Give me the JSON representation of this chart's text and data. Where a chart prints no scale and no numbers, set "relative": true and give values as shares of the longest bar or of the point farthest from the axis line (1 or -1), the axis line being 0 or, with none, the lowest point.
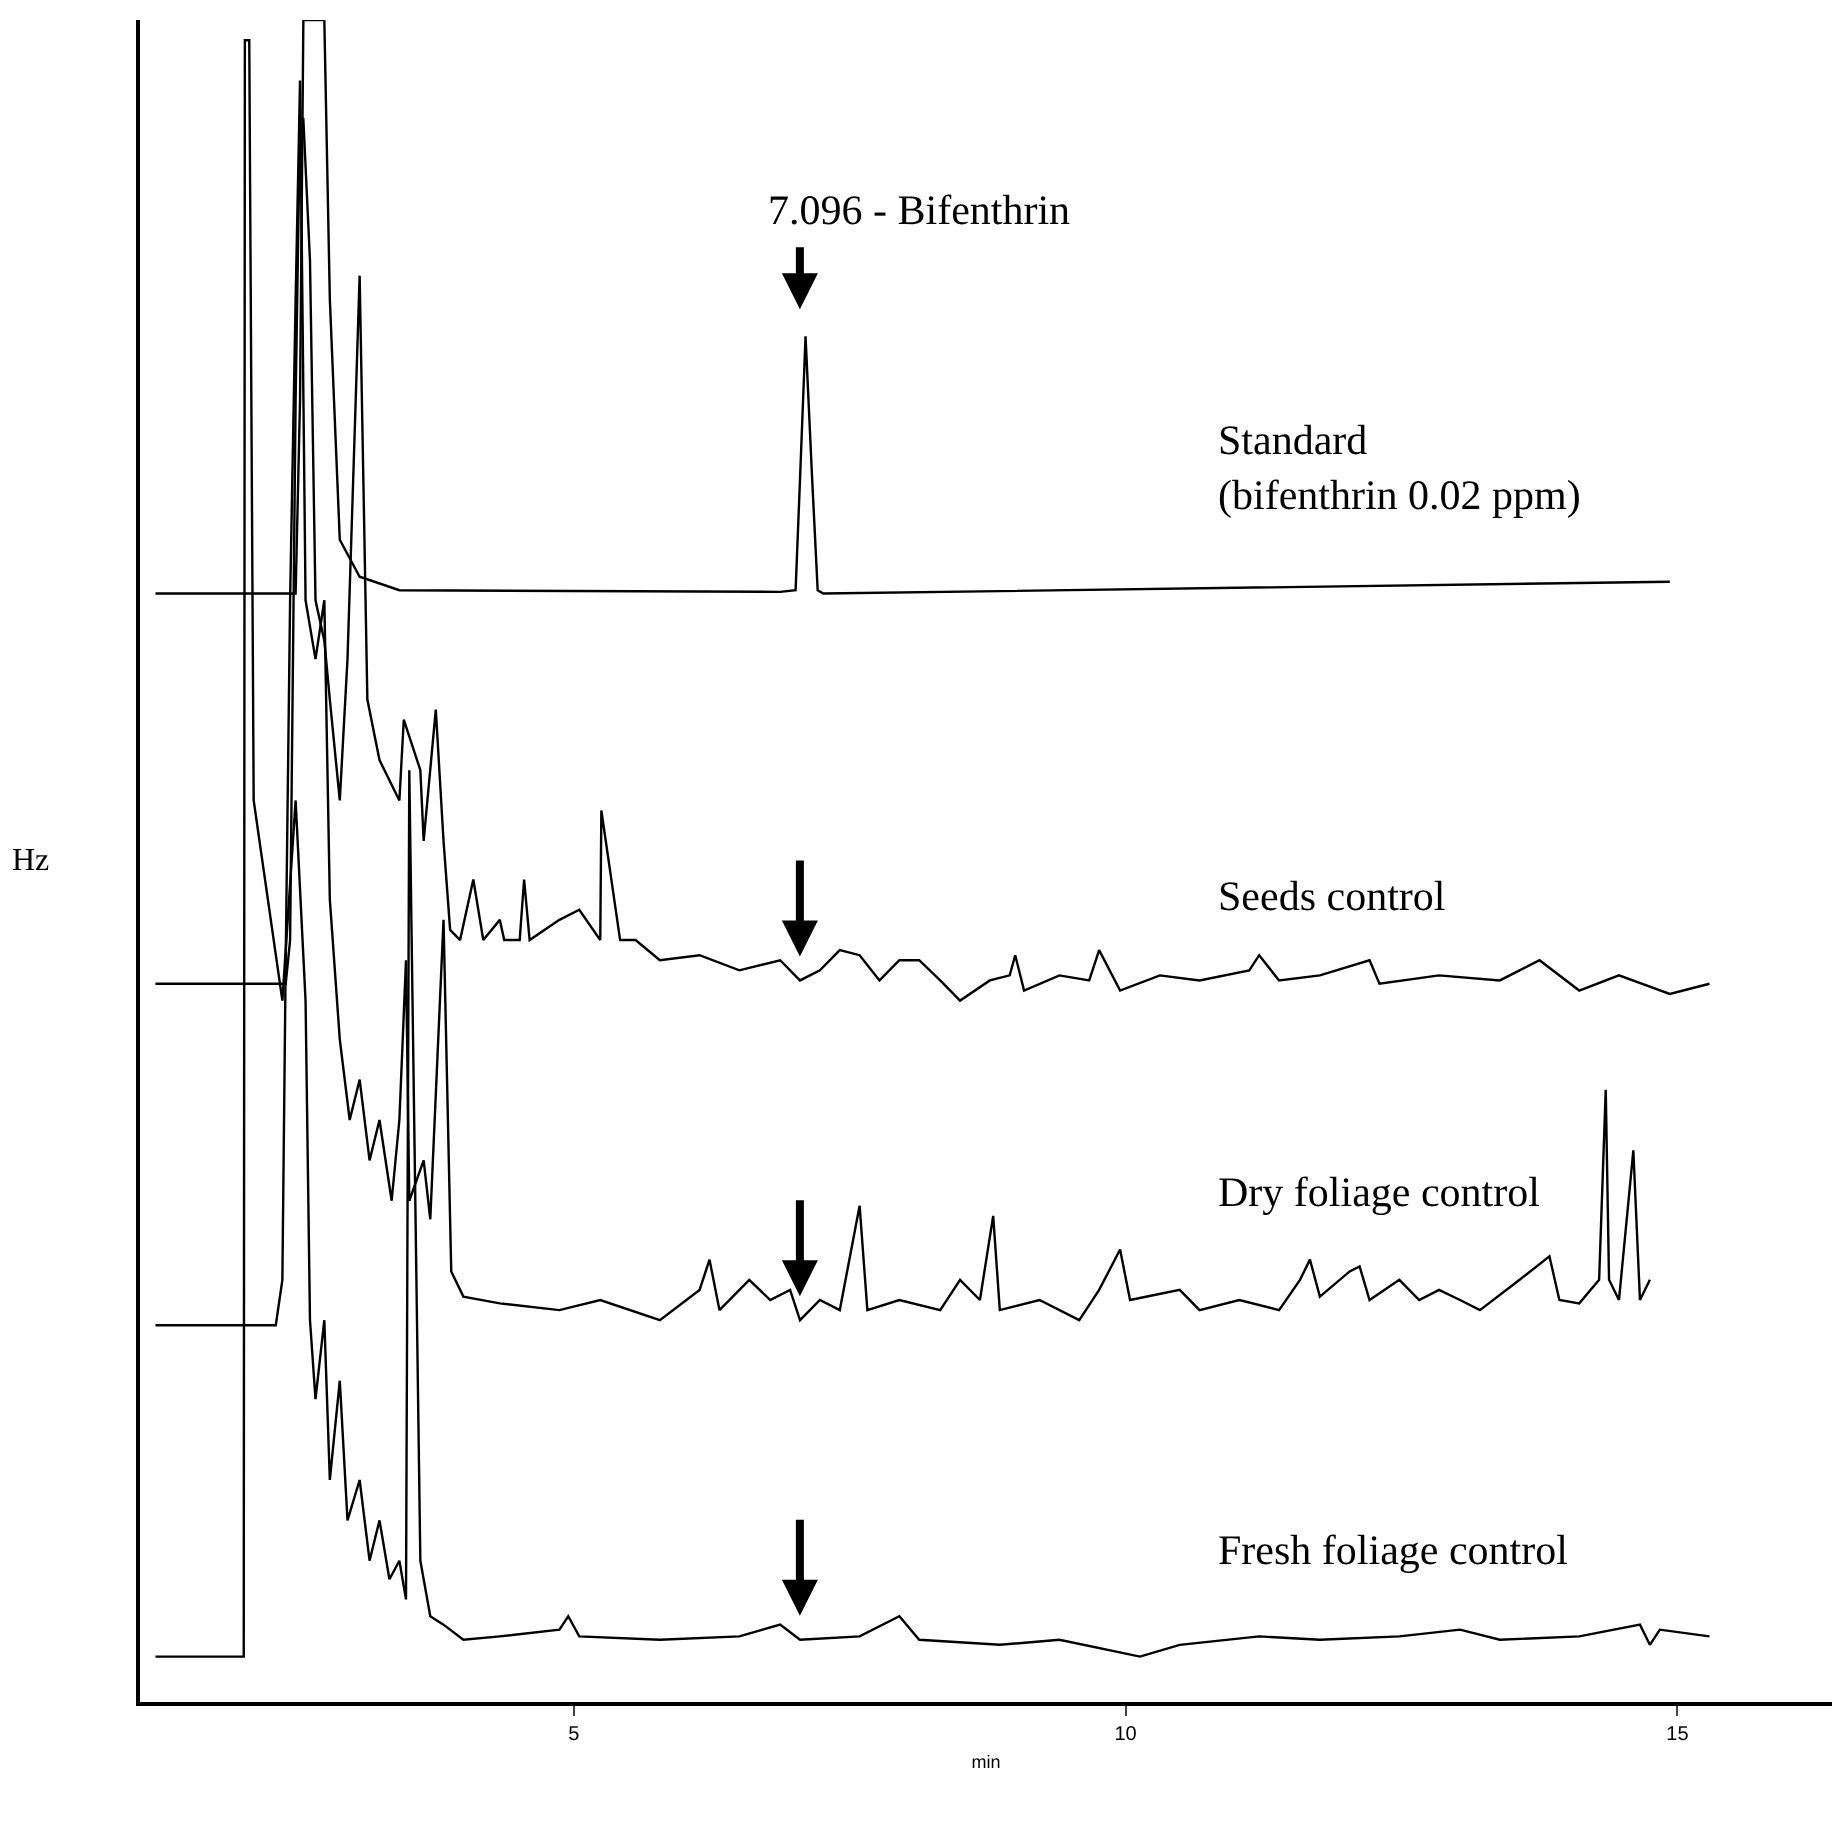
{
  "chart_data": {
    "type": "line",
    "relative": true,
    "xlabel": "min",
    "ylabel": "Hz",
    "xlim": [
      1.07,
      16.4
    ],
    "xticks": [
      5,
      10,
      15
    ],
    "legend": false,
    "grid": false,
    "marker": "none",
    "line_style": "solid",
    "annotations": [
      "7.096 - Bifenthrin"
    ],
    "series": [
      {
        "name": "Standard\n(bifenthrin 0.02 ppm)",
        "color": "#000000",
        "x": [
          1.21,
          2.48,
          2.52,
          2.55,
          2.74,
          2.79,
          2.88,
          3.06,
          3.42,
          6.87,
          7.01,
          7.05,
          7.1,
          7.16,
          7.21,
          7.26,
          14.93
        ],
        "values": [
          0.659,
          0.659,
          0.774,
          1.0,
          1.0,
          0.834,
          0.691,
          0.669,
          0.661,
          0.66,
          0.661,
          0.727,
          0.812,
          0.727,
          0.661,
          0.659,
          0.666
        ]
      },
      {
        "name": "Seeds control",
        "color": "#000000",
        "x": [
          1.21,
          2.39,
          2.43,
          2.48,
          2.52,
          2.55,
          2.61,
          2.66,
          2.74,
          2.79,
          2.88,
          2.95,
          3.06,
          3.13,
          3.24,
          3.42,
          3.46,
          3.61,
          3.64,
          3.75,
          3.82,
          3.88,
          3.97,
          4.09,
          4.18,
          4.33,
          4.37,
          4.51,
          4.55,
          4.6,
          4.87,
          5.05,
          5.24,
          5.25,
          5.42,
          5.56,
          5.78,
          6.14,
          6.5,
          6.87,
          7.05,
          7.23,
          7.41,
          7.59,
          7.77,
          7.95,
          8.13,
          8.32,
          8.5,
          8.77,
          8.95,
          9.0,
          9.08,
          9.4,
          9.67,
          9.76,
          9.95,
          10.31,
          10.67,
          11.12,
          11.21,
          11.39,
          11.76,
          12.21,
          12.3,
          12.84,
          13.39,
          13.75,
          14.11,
          14.47,
          14.93,
          15.29
        ],
        "values": [
          0.427,
          0.427,
          0.453,
          0.774,
          0.941,
          0.941,
          0.857,
          0.655,
          0.631,
          0.596,
          0.536,
          0.62,
          0.848,
          0.596,
          0.56,
          0.536,
          0.584,
          0.554,
          0.512,
          0.59,
          0.512,
          0.459,
          0.453,
          0.489,
          0.453,
          0.465,
          0.453,
          0.453,
          0.489,
          0.453,
          0.465,
          0.471,
          0.453,
          0.53,
          0.453,
          0.453,
          0.441,
          0.444,
          0.435,
          0.441,
          0.429,
          0.435,
          0.447,
          0.444,
          0.429,
          0.441,
          0.441,
          0.429,
          0.417,
          0.429,
          0.432,
          0.444,
          0.423,
          0.432,
          0.429,
          0.447,
          0.423,
          0.432,
          0.429,
          0.435,
          0.444,
          0.429,
          0.432,
          0.441,
          0.427,
          0.432,
          0.429,
          0.441,
          0.423,
          0.432,
          0.421,
          0.427
        ]
      },
      {
        "name": "Dry foliage control",
        "color": "#000000",
        "x": [
          1.21,
          2.3,
          2.36,
          2.39,
          2.43,
          2.48,
          2.52,
          2.57,
          2.66,
          2.74,
          2.79,
          2.88,
          2.97,
          3.06,
          3.15,
          3.24,
          3.35,
          3.42,
          3.48,
          3.51,
          3.64,
          3.7,
          3.82,
          3.89,
          4.0,
          4.33,
          4.87,
          5.24,
          5.78,
          6.14,
          6.23,
          6.32,
          6.59,
          6.78,
          6.96,
          7.05,
          7.23,
          7.41,
          7.59,
          7.66,
          7.95,
          8.32,
          8.5,
          8.68,
          8.8,
          8.86,
          9.22,
          9.58,
          9.76,
          9.95,
          10.04,
          10.49,
          10.67,
          11.03,
          11.39,
          11.58,
          11.67,
          11.76,
          12.03,
          12.12,
          12.21,
          12.48,
          12.66,
          12.84,
          13.03,
          13.21,
          13.57,
          13.84,
          13.93,
          14.11,
          14.29,
          14.35,
          14.38,
          14.47,
          14.6,
          14.66,
          14.75
        ],
        "values": [
          0.224,
          0.224,
          0.251,
          0.441,
          0.655,
          0.834,
          0.964,
          0.655,
          0.62,
          0.655,
          0.477,
          0.394,
          0.346,
          0.37,
          0.322,
          0.346,
          0.298,
          0.346,
          0.441,
          0.298,
          0.322,
          0.287,
          0.465,
          0.256,
          0.241,
          0.237,
          0.233,
          0.239,
          0.227,
          0.245,
          0.263,
          0.233,
          0.251,
          0.239,
          0.245,
          0.227,
          0.239,
          0.233,
          0.295,
          0.233,
          0.239,
          0.233,
          0.251,
          0.239,
          0.289,
          0.233,
          0.239,
          0.227,
          0.245,
          0.269,
          0.239,
          0.245,
          0.233,
          0.239,
          0.233,
          0.251,
          0.263,
          0.241,
          0.256,
          0.259,
          0.239,
          0.251,
          0.239,
          0.245,
          0.239,
          0.233,
          0.251,
          0.265,
          0.239,
          0.237,
          0.251,
          0.364,
          0.251,
          0.239,
          0.328,
          0.239,
          0.251
        ]
      },
      {
        "name": "Fresh foliage control",
        "color": "#000000",
        "x": [
          1.21,
          2.01,
          2.02,
          2.06,
          2.1,
          2.36,
          2.48,
          2.57,
          2.61,
          2.66,
          2.74,
          2.79,
          2.88,
          2.95,
          3.06,
          3.15,
          3.24,
          3.33,
          3.42,
          3.48,
          3.51,
          3.61,
          3.7,
          3.82,
          4.0,
          4.33,
          4.87,
          4.95,
          5.05,
          5.78,
          6.5,
          6.87,
          7.05,
          7.59,
          7.95,
          8.13,
          8.86,
          9.4,
          10.13,
          10.49,
          11.21,
          11.76,
          12.48,
          13.03,
          13.39,
          14.11,
          14.66,
          14.75,
          14.84,
          15.29
        ],
        "values": [
          0.027,
          0.027,
          0.988,
          0.988,
          0.536,
          0.417,
          0.536,
          0.417,
          0.227,
          0.18,
          0.227,
          0.132,
          0.191,
          0.108,
          0.132,
          0.084,
          0.108,
          0.073,
          0.084,
          0.061,
          0.554,
          0.084,
          0.051,
          0.046,
          0.037,
          0.039,
          0.043,
          0.051,
          0.039,
          0.037,
          0.039,
          0.046,
          0.037,
          0.039,
          0.051,
          0.037,
          0.034,
          0.037,
          0.027,
          0.034,
          0.039,
          0.037,
          0.039,
          0.043,
          0.037,
          0.039,
          0.046,
          0.034,
          0.043,
          0.039
        ]
      }
    ]
  }
}
